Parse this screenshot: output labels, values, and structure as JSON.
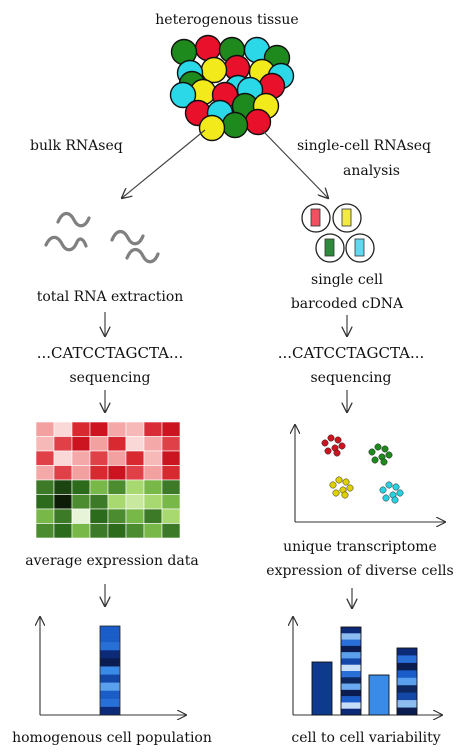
{
  "labels": {
    "top": "heterogenous tissue",
    "bulk": "bulk RNAseq",
    "sc1": "single-cell RNAseq",
    "sc2": "analysis",
    "rna_extraction": "total RNA extraction",
    "single_cell": "single cell",
    "barcoded": "barcoded cDNA",
    "seq_left": "...CATCCTAGCTA...",
    "seq_right": "...CATCCTAGCTA...",
    "sequencing_left": "sequencing",
    "sequencing_right": "sequencing",
    "avg_expr": "average expression data",
    "unique1": "unique transcriptome",
    "unique2": "expression of diverse cells",
    "homog": "homogenous cell population",
    "variab": "cell to cell variability"
  },
  "colors": {
    "green": "#1e8a1e",
    "red": "#e8102a",
    "cyan": "#2ad8e8",
    "yellow": "#f2ea1a"
  },
  "tissue": [
    {
      "c": "green"
    },
    {
      "c": "red"
    },
    {
      "c": "green"
    },
    {
      "c": "cyan"
    },
    {
      "c": "green"
    },
    {
      "c": "cyan"
    },
    {
      "c": "yellow"
    },
    {
      "c": "red"
    },
    {
      "c": "yellow"
    },
    {
      "c": "cyan"
    },
    {
      "c": "yellow"
    },
    {
      "c": "red"
    },
    {
      "c": "cyan"
    },
    {
      "c": "red"
    },
    {
      "c": "red"
    },
    {
      "c": "cyan"
    },
    {
      "c": "green"
    },
    {
      "c": "yellow"
    },
    {
      "c": "yellow"
    },
    {
      "c": "green"
    },
    {
      "c": "red"
    },
    {
      "c": "cyan"
    },
    {
      "c": "green"
    },
    {
      "c": "cyan"
    }
  ],
  "heatmap": [
    [
      "#f3a0a0",
      "#fbd8d8",
      "#d82830",
      "#cc1420",
      "#f4a8a8",
      "#f7b8b8",
      "#d82c36",
      "#cc1420"
    ],
    [
      "#f7b8b8",
      "#e04048",
      "#cc1420",
      "#f3a0a0",
      "#d82830",
      "#fbd8d8",
      "#f4a8a8",
      "#e04048"
    ],
    [
      "#e04048",
      "#fbd8d8",
      "#f4a8a8",
      "#e04048",
      "#f3a0a0",
      "#d82830",
      "#f7b8b8",
      "#cc1420"
    ],
    [
      "#f4a8a8",
      "#e04048",
      "#f3a0a0",
      "#d82830",
      "#cc1420",
      "#e04048",
      "#f3a0a0",
      "#d82830"
    ],
    [
      "#3c7a28",
      "#1c4410",
      "#2c6a1c",
      "#78b848",
      "#4c8c30",
      "#a8d870",
      "#78b848",
      "#3c7a28"
    ],
    [
      "#2c6a1c",
      "#0c1c06",
      "#4c8c30",
      "#3c7a28",
      "#a8d870",
      "#c8e8a0",
      "#a8d870",
      "#78b848"
    ],
    [
      "#78b848",
      "#3c7a28",
      "#e8f4d8",
      "#2c6a1c",
      "#4c8c30",
      "#78b848",
      "#3c7a28",
      "#a8d870"
    ],
    [
      "#4c8c30",
      "#2c6a1c",
      "#78b848",
      "#3c7a28",
      "#2c6a1c",
      "#4c8c30",
      "#78b848",
      "#3c7a28"
    ]
  ],
  "clusters": [
    {
      "color": "#cc1420",
      "cx": 333,
      "cy": 445
    },
    {
      "color": "#1e8a1e",
      "cx": 380,
      "cy": 454
    },
    {
      "color": "#e0d000",
      "cx": 341,
      "cy": 487
    },
    {
      "color": "#2ad0e0",
      "cx": 391,
      "cy": 492
    }
  ],
  "bulk_stripes": [
    "#1a5cc8",
    "#1a5cc8",
    "#2870d8",
    "#0c2a78",
    "#0a1c50",
    "#3a8ae8",
    "#1448a8",
    "#5aa0ec",
    "#1a5cc8",
    "#2870d8",
    "#0c2a78"
  ],
  "sc_bars": {
    "b1": [
      "#0d3a8c"
    ],
    "b2": [
      "#0c2a78",
      "#8cbcf0",
      "#2870d8",
      "#0a1c50",
      "#5aa0ec",
      "#1448a8",
      "#c8def8",
      "#2870d8",
      "#0d2860",
      "#6aaaf0",
      "#0a1c50",
      "#1a5cc8",
      "#c8def8",
      "#0c2a78"
    ],
    "b3": [
      "#3a8ae8"
    ],
    "b4": [
      "#0c2a78",
      "#2870d8",
      "#0a1c50",
      "#1a5cc8",
      "#5aa0ec",
      "#0d2860",
      "#1448a8",
      "#8cbcf0",
      "#0a1c50"
    ]
  }
}
